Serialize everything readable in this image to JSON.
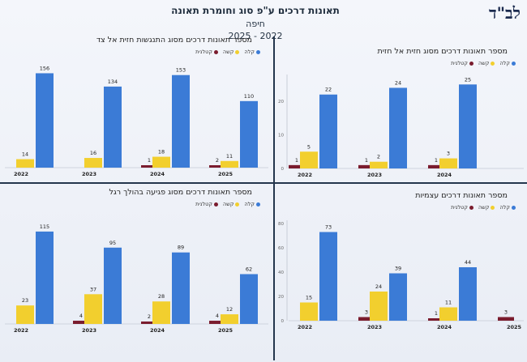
{
  "slide": {
    "title": "תאונות דרכים ע\"פ סוג וחומרת תאונה",
    "subtitle_city": "חיפה",
    "subtitle_years": "2025 - 2022",
    "logo_text": "לב\"ד"
  },
  "colors": {
    "light": "#3b7bd6",
    "serious": "#f2cf2e",
    "fatal": "#7a1c2e"
  },
  "legend_labels": {
    "light": "קלה",
    "serious": "קשה",
    "fatal": "קטלנית"
  },
  "chart_data": [
    {
      "id": "top-left",
      "type": "bar",
      "title": "מספר תאונות דרכים מסוג התנגשות חזית אל צד",
      "categories": [
        "2022",
        "2023",
        "2024",
        "2025"
      ],
      "series": [
        {
          "name": "קטלנית",
          "values": [
            null,
            null,
            1,
            2
          ]
        },
        {
          "name": "קשה",
          "values": [
            14,
            16,
            18,
            11
          ]
        },
        {
          "name": "קלה",
          "values": [
            156,
            134,
            153,
            110
          ]
        }
      ],
      "ylim": [
        0,
        170
      ],
      "yticks": [],
      "legend": "top-right"
    },
    {
      "id": "top-right",
      "type": "bar",
      "title": "מספר תאונות דרכים מסוג חזית אל חזית",
      "categories": [
        "2022",
        "2023",
        "2024"
      ],
      "series": [
        {
          "name": "קטלנית",
          "values": [
            1,
            1,
            1
          ]
        },
        {
          "name": "קשה",
          "values": [
            5,
            2,
            3
          ]
        },
        {
          "name": "קלה",
          "values": [
            22,
            24,
            25
          ]
        }
      ],
      "ylim": [
        0,
        27
      ],
      "yticks": [
        0,
        10,
        20
      ],
      "legend": "top-right"
    },
    {
      "id": "bottom-left",
      "type": "bar",
      "title": "מספר תאונות דרכים מסוג פגיעה בהולך רגל",
      "categories": [
        "2022",
        "2023",
        "2024",
        "2025"
      ],
      "series": [
        {
          "name": "קטלנית",
          "values": [
            null,
            4,
            2,
            4
          ]
        },
        {
          "name": "קשה",
          "values": [
            23,
            37,
            28,
            12
          ]
        },
        {
          "name": "קלה",
          "values": [
            115,
            95,
            89,
            62
          ]
        }
      ],
      "ylim": [
        0,
        125
      ],
      "yticks": [],
      "legend": "top-right"
    },
    {
      "id": "bottom-right",
      "type": "bar",
      "title": "מספר תאונות דרכים עצמיות",
      "categories": [
        "2022",
        "2023",
        "2024",
        "2025"
      ],
      "series": [
        {
          "name": "קטלנית",
          "values": [
            null,
            3,
            1,
            3
          ]
        },
        {
          "name": "קשה",
          "values": [
            15,
            24,
            11,
            null
          ]
        },
        {
          "name": "קלה",
          "values": [
            73,
            39,
            44,
            null
          ]
        }
      ],
      "ylim": [
        0,
        80
      ],
      "yticks": [
        0,
        20,
        40,
        60,
        80
      ],
      "legend": "top-right"
    }
  ]
}
